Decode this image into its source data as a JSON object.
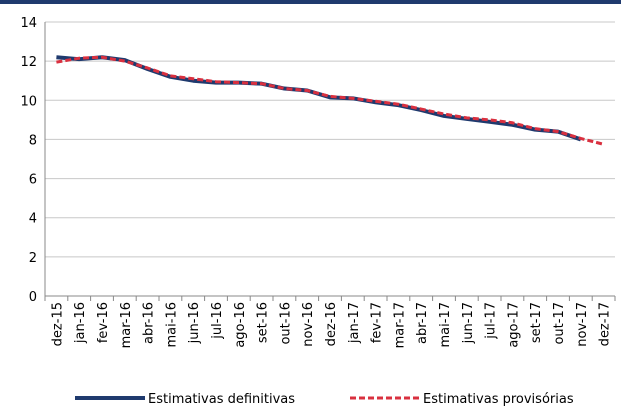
{
  "chart_data": {
    "type": "line",
    "categories": [
      "dez-15",
      "jan-16",
      "fev-16",
      "mar-16",
      "abr-16",
      "mai-16",
      "jun-16",
      "jul-16",
      "ago-16",
      "set-16",
      "out-16",
      "nov-16",
      "dez-16",
      "jan-17",
      "fev-17",
      "mar-17",
      "abr-17",
      "mai-17",
      "jun-17",
      "jul-17",
      "ago-17",
      "set-17",
      "out-17",
      "nov-17",
      "dez-17"
    ],
    "series": [
      {
        "name": "Estimativas definitivas",
        "color": "#1f3a6e",
        "dash": false,
        "values": [
          12.2,
          12.1,
          12.2,
          12.05,
          11.6,
          11.2,
          11.0,
          10.9,
          10.9,
          10.85,
          10.6,
          10.5,
          10.15,
          10.1,
          9.9,
          9.75,
          9.5,
          9.2,
          9.05,
          8.9,
          8.75,
          8.5,
          8.4,
          8.0,
          null
        ]
      },
      {
        "name": "Estimativas provisórias",
        "color": "#d9303f",
        "dash": true,
        "values": [
          11.95,
          12.15,
          12.2,
          12.0,
          11.65,
          11.25,
          11.1,
          10.95,
          10.9,
          10.85,
          10.6,
          10.5,
          10.2,
          10.1,
          9.95,
          9.8,
          9.55,
          9.3,
          9.1,
          9.0,
          8.85,
          8.55,
          8.4,
          8.05,
          7.75
        ]
      }
    ],
    "ylim": [
      0,
      14
    ],
    "yticks": [
      0,
      2,
      4,
      6,
      8,
      10,
      12,
      14
    ],
    "grid": true
  }
}
